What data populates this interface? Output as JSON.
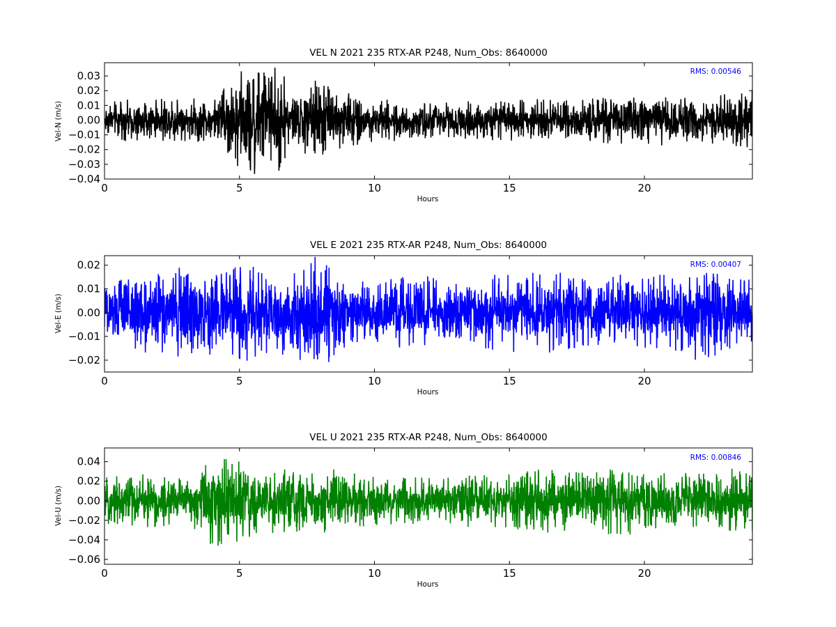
{
  "colors": {
    "background": "#ffffff",
    "rms_text": "#0000ff",
    "axes": "#000000"
  },
  "chart_data": [
    {
      "type": "line",
      "title": "VEL N 2021 235 RTX-AR  P248, Num_Obs: 8640000",
      "xlabel": "Hours",
      "ylabel": "Vel-N (m/s)",
      "xlim": [
        0,
        24
      ],
      "ylim": [
        -0.04,
        0.039
      ],
      "xticks": [
        0,
        5,
        10,
        15,
        20
      ],
      "yticks": [
        -0.04,
        -0.03,
        -0.02,
        -0.01,
        0.0,
        0.01,
        0.02,
        0.03
      ],
      "ytick_labels": [
        "−0.04",
        "−0.03",
        "−0.02",
        "−0.01",
        "0.00",
        "0.01",
        "0.02",
        "0.03"
      ],
      "xtick_labels": [
        "0",
        "5",
        "10",
        "15",
        "20"
      ],
      "annotation": "RMS:  0.00546",
      "grid": false,
      "series": [
        {
          "color": "#000000",
          "envelope_hours": [
            0,
            1,
            2,
            3,
            4,
            4.5,
            5,
            5.5,
            6,
            6.5,
            7,
            7.5,
            8,
            8.5,
            9,
            10,
            11,
            12,
            12.8,
            13,
            14,
            15,
            16,
            17,
            18,
            19,
            20,
            21,
            22,
            23,
            24
          ],
          "amplitude": [
            0.011,
            0.012,
            0.012,
            0.013,
            0.012,
            0.022,
            0.028,
            0.031,
            0.034,
            0.03,
            0.018,
            0.02,
            0.025,
            0.02,
            0.016,
            0.013,
            0.012,
            0.011,
            0.01,
            0.013,
            0.012,
            0.012,
            0.012,
            0.011,
            0.013,
            0.014,
            0.015,
            0.014,
            0.013,
            0.015,
            0.018
          ]
        }
      ]
    },
    {
      "type": "line",
      "title": "VEL E 2021 235 RTX-AR  P248, Num_Obs: 8640000",
      "xlabel": "Hours",
      "ylabel": "Vel-E (m/s)",
      "xlim": [
        0,
        24
      ],
      "ylim": [
        -0.025,
        0.024
      ],
      "xticks": [
        0,
        5,
        10,
        15,
        20
      ],
      "yticks": [
        -0.02,
        -0.01,
        0.0,
        0.01,
        0.02
      ],
      "ytick_labels": [
        "−0.02",
        "−0.01",
        "0.00",
        "0.01",
        "0.02"
      ],
      "xtick_labels": [
        "0",
        "5",
        "10",
        "15",
        "20"
      ],
      "annotation": "RMS:  0.00407",
      "grid": false,
      "series": [
        {
          "color": "#0000ff",
          "envelope_hours": [
            0,
            1,
            2,
            3,
            4,
            5,
            6,
            7,
            7.5,
            8,
            8.5,
            9,
            10,
            11,
            12,
            12.8,
            13,
            14,
            15,
            16,
            17,
            18,
            19,
            20,
            21,
            22,
            23,
            24
          ],
          "amplitude": [
            0.012,
            0.014,
            0.015,
            0.016,
            0.015,
            0.017,
            0.016,
            0.017,
            0.019,
            0.021,
            0.017,
            0.014,
            0.01,
            0.014,
            0.013,
            0.01,
            0.012,
            0.013,
            0.014,
            0.015,
            0.014,
            0.013,
            0.014,
            0.013,
            0.015,
            0.017,
            0.014,
            0.012
          ]
        }
      ]
    },
    {
      "type": "line",
      "title": "VEL U 2021 235 RTX-AR  P248, Num_Obs: 8640000",
      "xlabel": "Hours",
      "ylabel": "Vel-U (m/s)",
      "xlim": [
        0,
        24
      ],
      "ylim": [
        -0.065,
        0.054
      ],
      "xticks": [
        0,
        5,
        10,
        15,
        20
      ],
      "yticks": [
        -0.06,
        -0.04,
        -0.02,
        0.0,
        0.02,
        0.04
      ],
      "ytick_labels": [
        "−0.06",
        "−0.04",
        "−0.02",
        "0.00",
        "0.02",
        "0.04"
      ],
      "xtick_labels": [
        "0",
        "5",
        "10",
        "15",
        "20"
      ],
      "annotation": "RMS:  0.00846",
      "grid": false,
      "series": [
        {
          "color": "#008000",
          "envelope_hours": [
            0,
            1,
            2,
            3,
            3.5,
            4,
            5,
            6,
            7,
            8,
            9,
            10,
            11,
            12,
            12.8,
            13,
            14,
            15,
            16,
            17,
            18,
            19,
            20,
            21,
            22,
            23,
            24
          ],
          "amplitude": [
            0.022,
            0.024,
            0.023,
            0.02,
            0.03,
            0.04,
            0.035,
            0.027,
            0.029,
            0.03,
            0.024,
            0.022,
            0.021,
            0.022,
            0.02,
            0.023,
            0.022,
            0.024,
            0.03,
            0.026,
            0.025,
            0.032,
            0.026,
            0.025,
            0.024,
            0.027,
            0.03
          ]
        }
      ]
    }
  ]
}
